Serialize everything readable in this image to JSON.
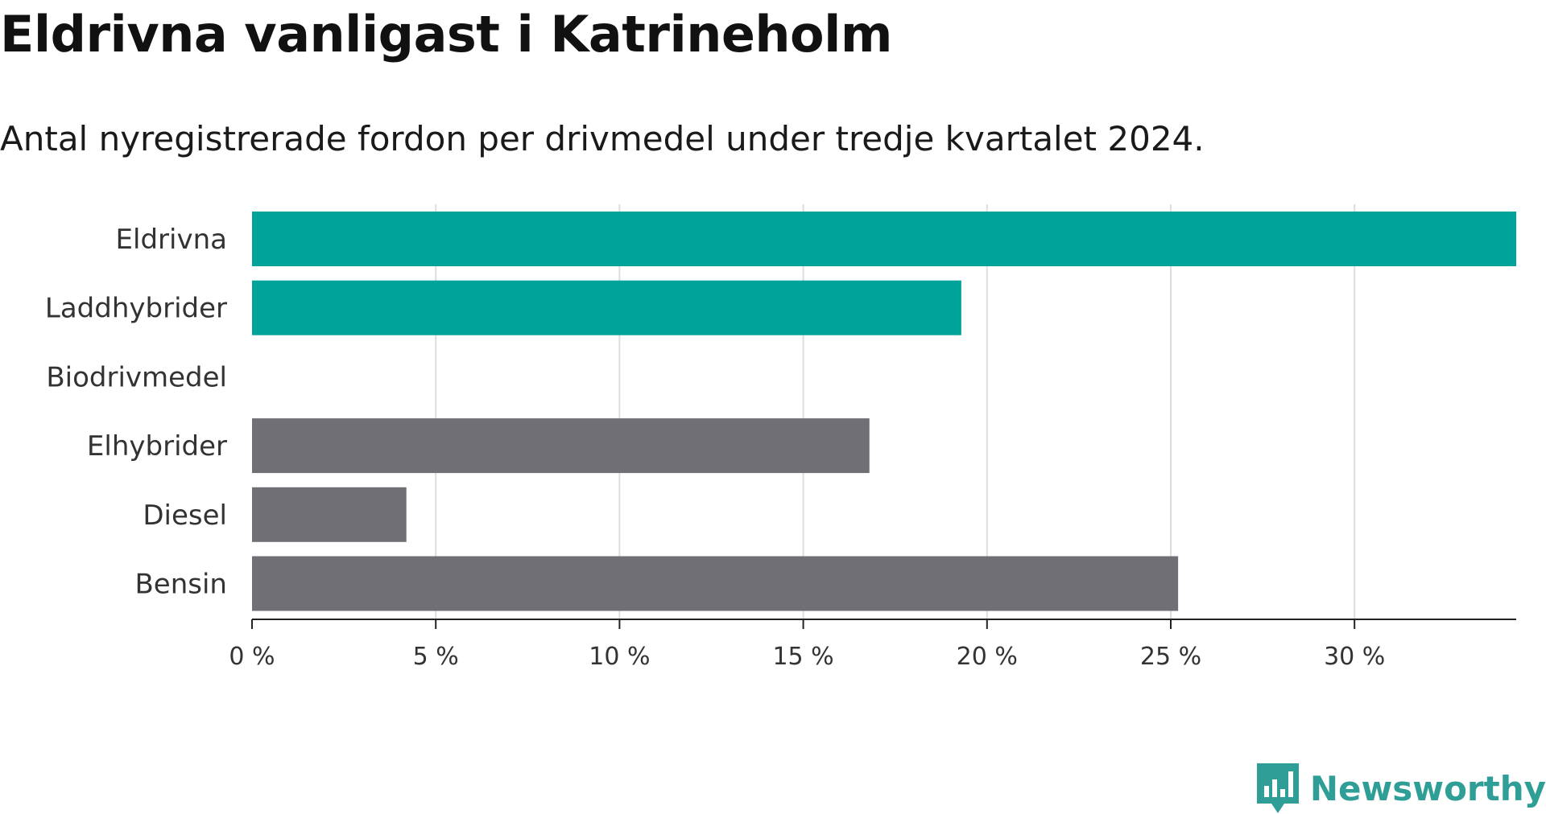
{
  "chart_data": {
    "type": "bar",
    "orientation": "horizontal",
    "title": "Eldrivna vanligast i Katrineholm",
    "subtitle": "Antal nyregistrerade fordon per drivmedel under tredje kvartalet 2024.",
    "xlabel": "",
    "ylabel": "",
    "categories": [
      "Eldrivna",
      "Laddhybrider",
      "Biodrivmedel",
      "Elhybrider",
      "Diesel",
      "Bensin"
    ],
    "values": [
      34.4,
      19.3,
      0,
      16.8,
      4.2,
      25.2
    ],
    "bar_colors": [
      "#00a39a",
      "#00a39a",
      "#00a39a",
      "#6f6f75",
      "#6f6f75",
      "#6f6f75"
    ],
    "xlim": [
      0,
      34.4
    ],
    "xticks": [
      0,
      5,
      10,
      15,
      20,
      25,
      30
    ],
    "xtick_labels": [
      "0 %",
      "5 %",
      "10 %",
      "15 %",
      "20 %",
      "25 %",
      "30 %"
    ],
    "grid": "vertical",
    "colors": {
      "highlight": "#00a39a",
      "default": "#6f6f75",
      "grid": "#dddddd",
      "axis": "#222222",
      "label": "#333333"
    }
  },
  "brand": {
    "name": "Newsworthy",
    "icon": "newsworthy-logo-icon",
    "color": "#2f9e96"
  }
}
